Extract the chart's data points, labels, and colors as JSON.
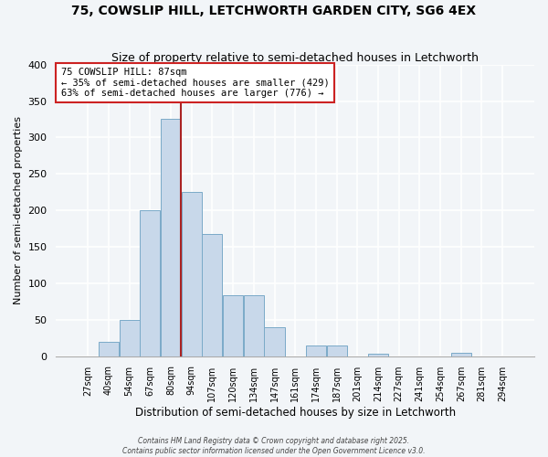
{
  "title": "75, COWSLIP HILL, LETCHWORTH GARDEN CITY, SG6 4EX",
  "subtitle": "Size of property relative to semi-detached houses in Letchworth",
  "xlabel": "Distribution of semi-detached houses by size in Letchworth",
  "ylabel": "Number of semi-detached properties",
  "bar_color": "#c8d8ea",
  "bar_edge_color": "#7aaac8",
  "bin_labels": [
    "27sqm",
    "40sqm",
    "54sqm",
    "67sqm",
    "80sqm",
    "94sqm",
    "107sqm",
    "120sqm",
    "134sqm",
    "147sqm",
    "161sqm",
    "174sqm",
    "187sqm",
    "201sqm",
    "214sqm",
    "227sqm",
    "241sqm",
    "254sqm",
    "267sqm",
    "281sqm",
    "294sqm"
  ],
  "bar_heights": [
    0,
    20,
    50,
    200,
    325,
    225,
    168,
    84,
    84,
    40,
    0,
    15,
    15,
    0,
    4,
    0,
    0,
    0,
    5,
    0,
    0
  ],
  "ylim": [
    0,
    400
  ],
  "yticks": [
    0,
    50,
    100,
    150,
    200,
    250,
    300,
    350,
    400
  ],
  "annotation_title": "75 COWSLIP HILL: 87sqm",
  "annotation_line1": "← 35% of semi-detached houses are smaller (429)",
  "annotation_line2": "63% of semi-detached houses are larger (776) →",
  "vline_color": "#aa2222",
  "background_color": "#f2f5f8",
  "grid_color": "#dde4ec",
  "footer1": "Contains HM Land Registry data © Crown copyright and database right 2025.",
  "footer2": "Contains public sector information licensed under the Open Government Licence v3.0."
}
